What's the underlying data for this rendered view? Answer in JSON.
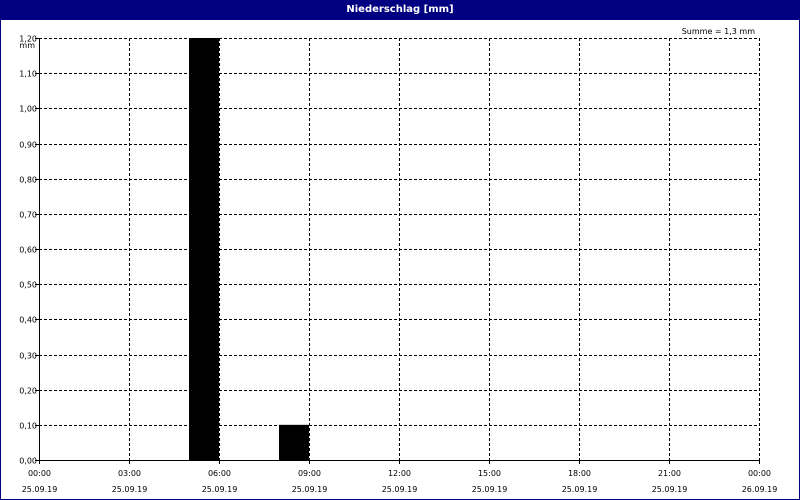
{
  "window": {
    "title": "Niederschlag [mm]"
  },
  "chart_data": {
    "type": "bar",
    "title": "Niederschlag [mm]",
    "ylabel": "mm",
    "annotation": "Summe = 1,3 mm",
    "ylim": [
      0,
      1.2
    ],
    "yticks": [
      {
        "value": 0.0,
        "label": "0,00"
      },
      {
        "value": 0.1,
        "label": "0,10"
      },
      {
        "value": 0.2,
        "label": "0,20"
      },
      {
        "value": 0.3,
        "label": "0,30"
      },
      {
        "value": 0.4,
        "label": "0,40"
      },
      {
        "value": 0.5,
        "label": "0,50"
      },
      {
        "value": 0.6,
        "label": "0,60"
      },
      {
        "value": 0.7,
        "label": "0,70"
      },
      {
        "value": 0.8,
        "label": "0,80"
      },
      {
        "value": 0.9,
        "label": "0,90"
      },
      {
        "value": 1.0,
        "label": "1,00"
      },
      {
        "value": 1.1,
        "label": "1,10"
      },
      {
        "value": 1.2,
        "label": "1,20"
      }
    ],
    "xlim": [
      "2019-09-25 00:00",
      "2019-09-26 00:00"
    ],
    "xticks": [
      {
        "time": "00:00",
        "date": "25.09.19"
      },
      {
        "time": "03:00",
        "date": "25.09.19"
      },
      {
        "time": "06:00",
        "date": "25.09.19"
      },
      {
        "time": "09:00",
        "date": "25.09.19"
      },
      {
        "time": "12:00",
        "date": "25.09.19"
      },
      {
        "time": "15:00",
        "date": "25.09.19"
      },
      {
        "time": "18:00",
        "date": "25.09.19"
      },
      {
        "time": "21:00",
        "date": "25.09.19"
      },
      {
        "time": "00:00",
        "date": "26.09.19"
      }
    ],
    "series": [
      {
        "values": [
          {
            "start": "2019-09-25 05:00",
            "end": "2019-09-25 06:00",
            "value": 1.2
          },
          {
            "start": "2019-09-25 08:00",
            "end": "2019-09-25 09:00",
            "value": 0.1
          }
        ]
      }
    ],
    "grid": true,
    "colors": {
      "bar": "#000000",
      "title_bg": "#000080",
      "title_fg": "#ffffff",
      "grid": "#000000"
    }
  }
}
